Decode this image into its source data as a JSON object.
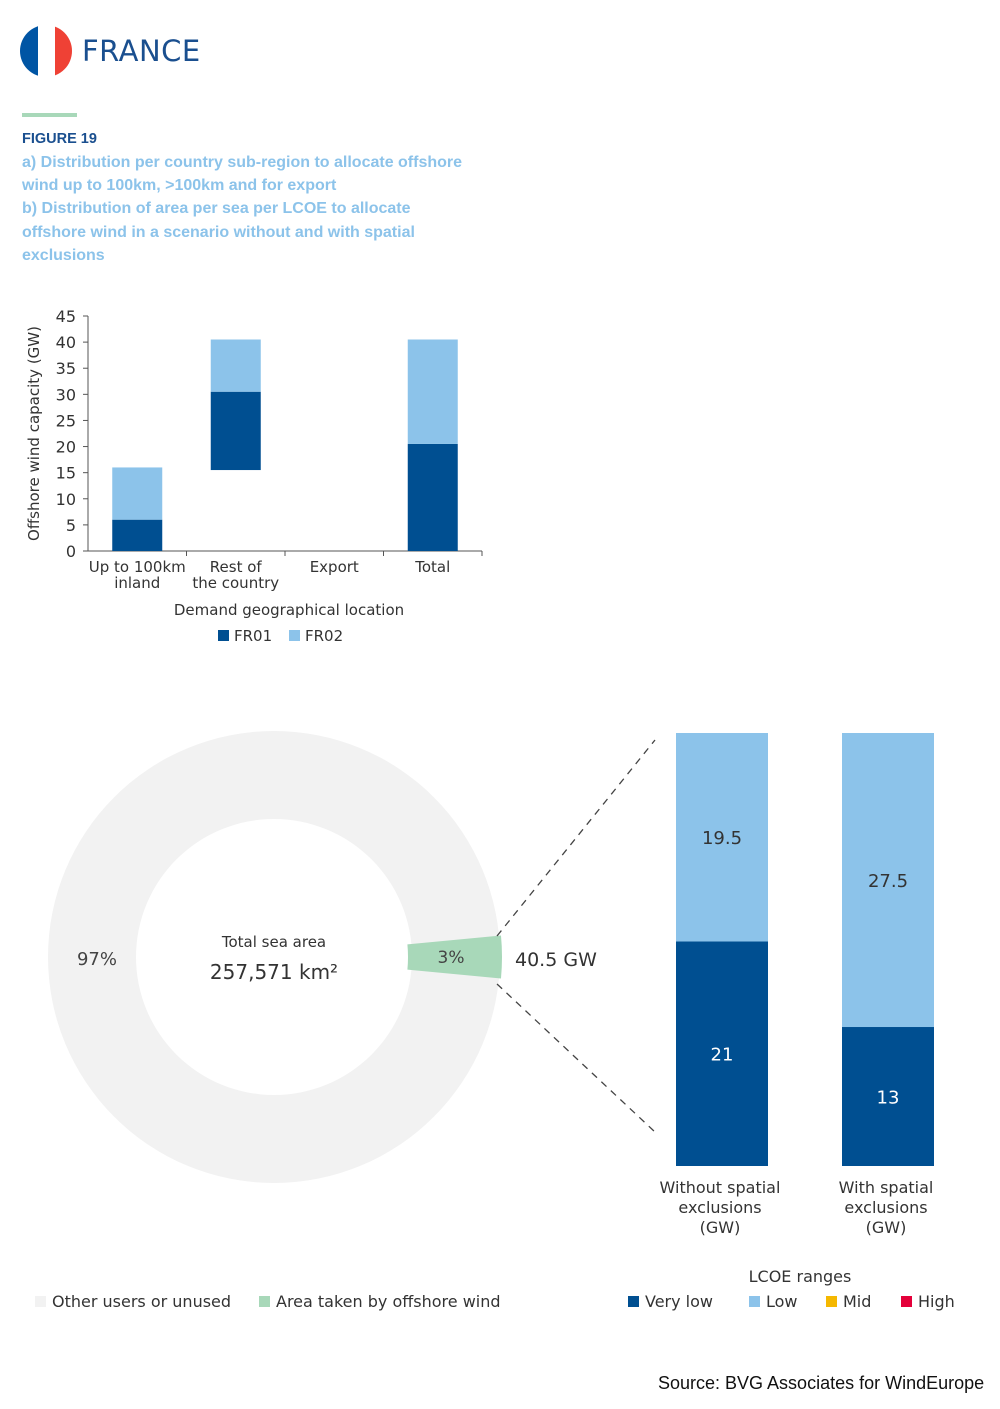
{
  "header": {
    "country": "FRANCE",
    "flag_icon": "france-flag-icon",
    "flag_colors": [
      "#0055a4",
      "#ffffff",
      "#ef4135"
    ]
  },
  "figure": {
    "label": "FIGURE 19",
    "caption_lines": [
      "a) Distribution per country sub-region to allocate offshore",
      "wind up to 100km, >100km and for export",
      "b) Distribution of area per sea per LCOE to allocate",
      "offshore wind in a scenario without and with spatial",
      "exclusions"
    ]
  },
  "colors": {
    "accent_rule": "#a8d8b9",
    "fr01": "#004f91",
    "fr02": "#8cc3ea",
    "very_low": "#004f91",
    "low": "#8cc3ea",
    "mid": "#f5b800",
    "high": "#e4003a",
    "other_users": "#f2f2f2",
    "offshore_area": "#a8d8b9",
    "title": "#1a4f8f"
  },
  "chart_data": [
    {
      "type": "bar",
      "stacked": "floating",
      "ylabel": "Offshore wind capacity (GW)",
      "xlabel": "Demand geographical location",
      "ylim": [
        0,
        45
      ],
      "yticks": [
        "0",
        "5",
        "10",
        "15",
        "20",
        "25",
        "30",
        "35",
        "40",
        "45"
      ],
      "categories": [
        [
          "Up to 100km",
          "inland"
        ],
        [
          "Rest of",
          "the country"
        ],
        [
          "Export"
        ],
        [
          "Total"
        ]
      ],
      "series": [
        {
          "name": "FR01",
          "values": [
            6,
            15,
            0,
            20.5
          ],
          "base": [
            0,
            15.5,
            0,
            0
          ]
        },
        {
          "name": "FR02",
          "values": [
            10,
            10,
            0,
            20
          ],
          "base": [
            6,
            30.5,
            0,
            20.5
          ]
        }
      ],
      "legend": [
        "FR01",
        "FR02"
      ],
      "legend_position": "bottom"
    },
    {
      "type": "pie",
      "center_label": "Total sea area",
      "center_value": "257,571 km²",
      "slices": [
        {
          "name": "Other users or unused",
          "value": 97,
          "label": "97%"
        },
        {
          "name": "Area taken by offshore wind",
          "value": 3,
          "label": "3%"
        }
      ],
      "callout": "40.5 GW"
    },
    {
      "type": "bar",
      "stacked": true,
      "categories": [
        [
          "Without spatial",
          "exclusions",
          "(GW)"
        ],
        [
          "With spatial",
          "exclusions",
          "(GW)"
        ]
      ],
      "series": [
        {
          "name": "Very low",
          "values": [
            21,
            13
          ]
        },
        {
          "name": "Low",
          "values": [
            19.5,
            27.5
          ]
        }
      ],
      "legend_title": "LCOE ranges",
      "legend": [
        "Very low",
        "Low",
        "Mid",
        "High"
      ],
      "legend_position": "bottom"
    }
  ],
  "footer": {
    "source": "Source: BVG Associates for WindEurope"
  }
}
